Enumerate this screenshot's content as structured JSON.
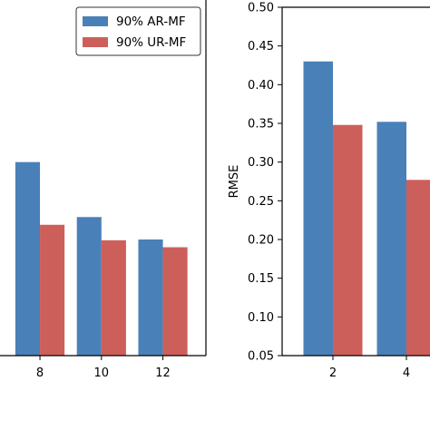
{
  "colors": {
    "ar_mf": "#4a80b8",
    "ur_mf": "#cd5f5b",
    "axis": "#000000",
    "background": "#ffffff"
  },
  "chart_data": [
    {
      "type": "bar",
      "categories": [
        "8",
        "10",
        "12"
      ],
      "series": [
        {
          "name": "90% AR-MF",
          "values": [
            0.3,
            0.229,
            0.2
          ]
        },
        {
          "name": "90% UR-MF",
          "values": [
            0.219,
            0.199,
            0.19
          ]
        }
      ],
      "xlim": [
        6.7,
        13.4
      ],
      "ylim": [
        0.05,
        0.5
      ],
      "legend": {
        "placement": "top-right",
        "entries": [
          {
            "label": "90% AR-MF",
            "color": "#4a80b8"
          },
          {
            "label": "90% UR-MF",
            "color": "#cd5f5b"
          }
        ]
      }
    },
    {
      "type": "bar",
      "categories": [
        "2",
        "4"
      ],
      "series": [
        {
          "name": "90% AR-MF",
          "values": [
            0.43,
            0.352
          ]
        },
        {
          "name": "90% UR-MF",
          "values": [
            0.348,
            0.277
          ]
        }
      ],
      "ylabel": "RMSE",
      "ylim": [
        0.05,
        0.5
      ],
      "yticks": [
        "0.05",
        "0.10",
        "0.15",
        "0.20",
        "0.25",
        "0.30",
        "0.35",
        "0.40",
        "0.45",
        "0.50"
      ]
    }
  ]
}
